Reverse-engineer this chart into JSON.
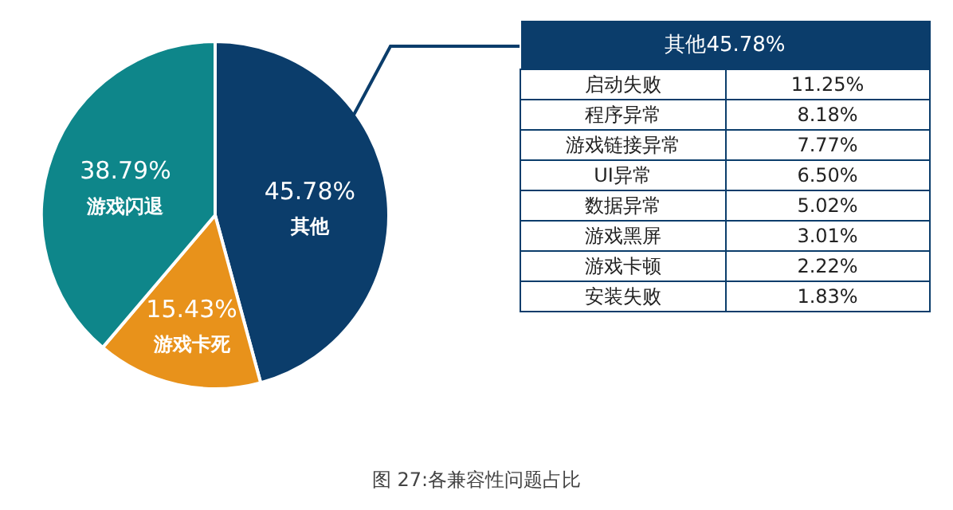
{
  "chart_data": [
    {
      "type": "pie",
      "categories": [
        "其他",
        "游戏卡死",
        "游戏闪退"
      ],
      "values": [
        45.78,
        15.43,
        38.79
      ],
      "colors": [
        "#0b3d6b",
        "#e8921b",
        "#0e868a"
      ],
      "value_labels": [
        "45.78%",
        "15.43%",
        "38.79%"
      ],
      "annotations": [
        "图 27:各兼容性问题占比"
      ]
    },
    {
      "type": "other",
      "title": "其他45.78%",
      "categories": [
        "启动失败",
        "程序异常",
        "游戏链接异常",
        "UI异常",
        "数据异常",
        "游戏黑屏",
        "游戏卡顿",
        "安装失败"
      ],
      "value_labels": [
        "11.25%",
        "8.18%",
        "7.77%",
        "6.50%",
        "5.02%",
        "3.01%",
        "2.22%",
        "1.83%"
      ]
    }
  ]
}
